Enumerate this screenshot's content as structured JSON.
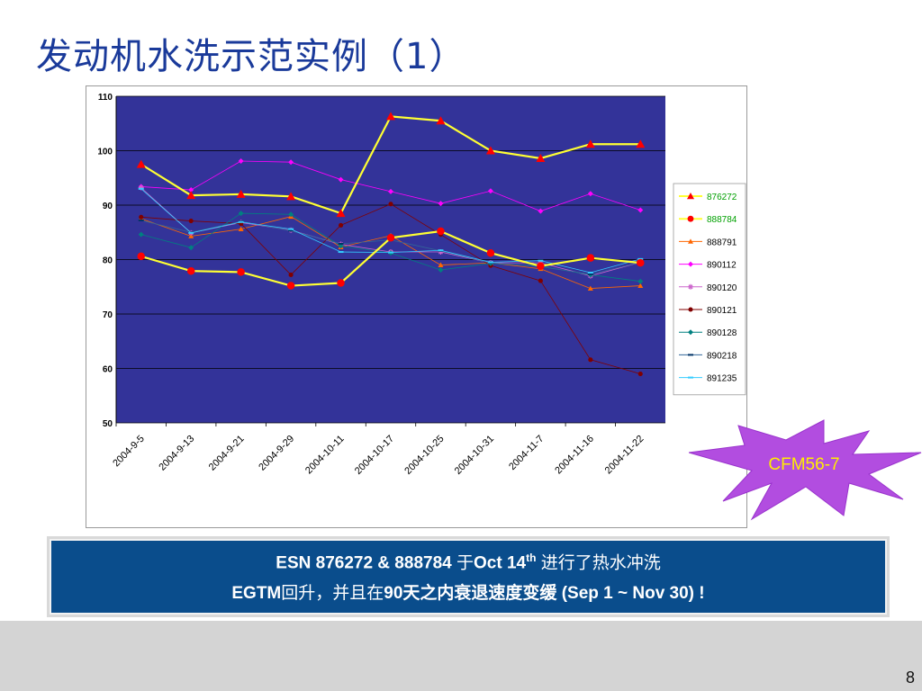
{
  "slide": {
    "title": "发动机水洗示范实例（1）",
    "badge_label": "CFM56-7",
    "banner_line1_parts": [
      "ESN 876272 & 888784 ",
      "于",
      "Oct 14",
      "th",
      " 进行了热水冲洗"
    ],
    "banner_line2_parts": [
      "EGTM",
      "回升，并且在",
      "90",
      "天之内衰退速度变缓 (Sep 1 ~ Nov 30) !"
    ],
    "page_number": "8"
  },
  "colors": {
    "title": "#1a3a9a",
    "plot_bg": "#333399",
    "banner_bg": "#0a4d8c",
    "badge_fill": "#b24de0",
    "badge_text": "#ffee00",
    "highlight_line": "#ffff33",
    "highlight_marker": "#ff0000"
  },
  "chart_data": {
    "type": "line",
    "categories": [
      "2004-9-5",
      "2004-9-13",
      "2004-9-21",
      "2004-9-29",
      "2004-10-11",
      "2004-10-17",
      "2004-10-25",
      "2004-10-31",
      "2004-11-7",
      "2004-11-16",
      "2004-11-22"
    ],
    "ylim": [
      50,
      110
    ],
    "yticks": [
      50,
      60,
      70,
      80,
      90,
      100,
      110
    ],
    "grid": true,
    "legend_position": "right",
    "series": [
      {
        "name": "876272",
        "values": [
          97.5,
          91.8,
          92.0,
          91.6,
          88.5,
          106.3,
          105.5,
          100.0,
          98.6,
          101.2,
          101.2
        ],
        "color": "#ffff33",
        "marker": "triangle",
        "marker_color": "#ff0000",
        "highlight": true
      },
      {
        "name": "888784",
        "values": [
          80.6,
          77.9,
          77.7,
          75.2,
          75.7,
          84.0,
          85.2,
          81.2,
          78.8,
          80.3,
          79.4
        ],
        "color": "#ffff33",
        "marker": "circle",
        "marker_color": "#ff0000",
        "highlight": true
      },
      {
        "name": "888791",
        "values": [
          87.5,
          84.3,
          85.6,
          87.9,
          82.3,
          84.4,
          79.0,
          79.4,
          78.3,
          74.7,
          75.2
        ],
        "color": "#ff6600",
        "marker": "triangle",
        "marker_color": "#ff6600",
        "highlight": false
      },
      {
        "name": "890112",
        "values": [
          93.4,
          92.8,
          98.1,
          97.9,
          94.7,
          92.5,
          90.3,
          92.6,
          88.9,
          92.1,
          89.1
        ],
        "color": "#ff00ff",
        "marker": "diamond",
        "marker_color": "#ff00ff",
        "highlight": false
      },
      {
        "name": "890120",
        "values": [
          93.2,
          84.9,
          86.8,
          85.4,
          82.8,
          81.4,
          81.4,
          79.4,
          79.4,
          77.0,
          79.5
        ],
        "color": "#cc66cc",
        "marker": "star",
        "marker_color": "#cc66cc",
        "highlight": false
      },
      {
        "name": "890121",
        "values": [
          87.8,
          87.1,
          86.6,
          77.2,
          86.3,
          90.2,
          84.6,
          78.9,
          76.1,
          61.6,
          59.0
        ],
        "color": "#800000",
        "marker": "circle",
        "marker_color": "#800000",
        "highlight": false
      },
      {
        "name": "890128",
        "values": [
          84.6,
          82.2,
          88.5,
          88.3,
          82.5,
          81.2,
          78.1,
          79.3,
          78.8,
          77.2,
          76.0
        ],
        "color": "#008080",
        "marker": "diamond",
        "marker_color": "#008080",
        "highlight": false
      },
      {
        "name": "890218",
        "values": [
          87.2,
          85.0,
          87.0,
          85.3,
          82.9,
          83.6,
          81.6,
          79.4,
          78.7,
          77.3,
          79.5
        ],
        "color": "#336699",
        "marker": "dash",
        "marker_color": "#003366",
        "highlight": false
      },
      {
        "name": "891235",
        "values": [
          93.0,
          84.9,
          86.9,
          85.6,
          81.4,
          81.3,
          81.7,
          79.5,
          79.8,
          77.6,
          80.1
        ],
        "color": "#33ccff",
        "marker": "dash",
        "marker_color": "#33ccff",
        "highlight": false
      }
    ]
  }
}
